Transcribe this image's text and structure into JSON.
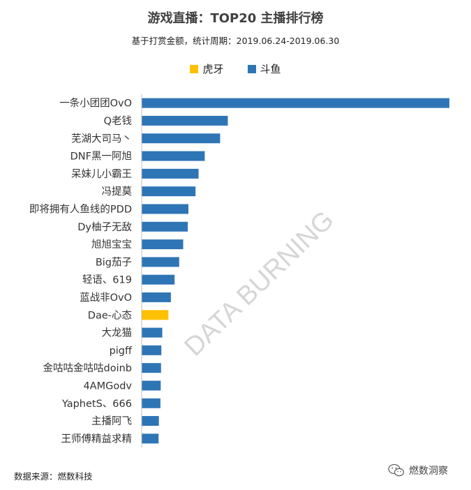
{
  "title": "游戏直播：TOP20 主播排行榜",
  "subtitle": "基于打赏金额，统计周期：2019.06.24-2019.06.30",
  "watermark": "DATA BURNING",
  "legend": [
    {
      "label": "虎牙",
      "color": "#FFC000"
    },
    {
      "label": "斗鱼",
      "color": "#2E75B6"
    }
  ],
  "footer": {
    "source": "数据来源：燃数科技",
    "brand": "燃数洞察",
    "brand_icon": "wechat-icon"
  },
  "chart_data": {
    "type": "bar",
    "orientation": "horizontal",
    "title": "游戏直播：TOP20 主播排行榜",
    "subtitle": "基于打赏金额，统计周期：2019.06.24-2019.06.30",
    "xlabel": "",
    "ylabel": "",
    "grid": false,
    "legend_position": "top",
    "xlim": [
      0,
      100
    ],
    "categories": [
      "一条小团团OvO",
      "Q老钱",
      "芜湖大司马丶",
      "DNF黑一阿旭",
      "呆妹儿小霸王",
      "冯提莫",
      "即将拥有人鱼线的PDD",
      "Dy柚子无敌",
      "旭旭宝宝",
      "Big茄子",
      "轻语、619",
      "蓝战非OvO",
      "Dae-心态",
      "大龙猫",
      "pigff",
      "金咕咕金咕咕doinb",
      "4AMGodv",
      "YaphetS、666",
      "主播阿飞",
      "王师傅精益求精"
    ],
    "values": [
      100,
      28,
      25.5,
      20.5,
      18.5,
      17.5,
      15.2,
      15,
      13.5,
      12.2,
      10.7,
      9.5,
      8.7,
      6.7,
      6.4,
      6.3,
      6.2,
      6.1,
      5.6,
      5.5
    ],
    "platforms": [
      "斗鱼",
      "斗鱼",
      "斗鱼",
      "斗鱼",
      "斗鱼",
      "斗鱼",
      "斗鱼",
      "斗鱼",
      "斗鱼",
      "斗鱼",
      "斗鱼",
      "斗鱼",
      "虎牙",
      "斗鱼",
      "斗鱼",
      "斗鱼",
      "斗鱼",
      "斗鱼",
      "斗鱼",
      "斗鱼"
    ]
  }
}
